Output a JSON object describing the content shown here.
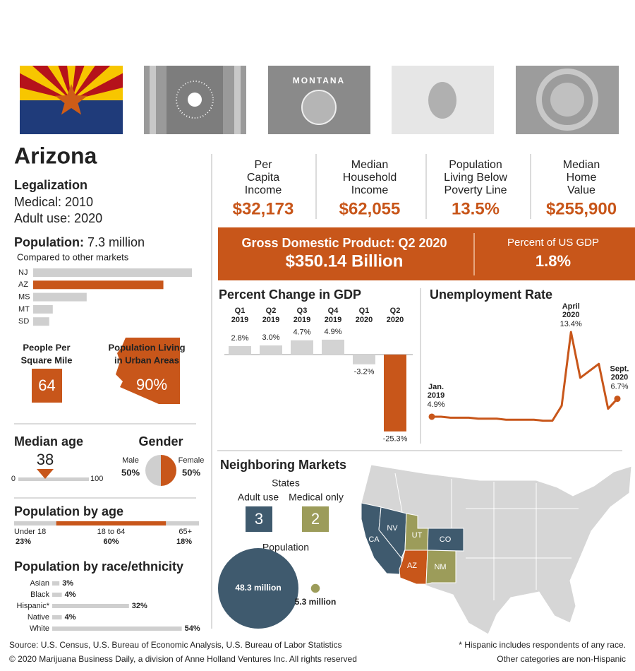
{
  "flags": {
    "montana": "MONTANA"
  },
  "state": "Arizona",
  "legalization": {
    "heading": "Legalization",
    "medical": "Medical: 2010",
    "adult_use": "Adult use: 2020"
  },
  "population": {
    "label": "Population:",
    "value": "7.3 million",
    "subtitle": "Compared to other markets"
  },
  "density": {
    "label": [
      "People Per",
      "Square Mile"
    ],
    "value": "64"
  },
  "urban": {
    "label": [
      "Population Living",
      "in Urban Areas"
    ],
    "value": "90%"
  },
  "stats": [
    {
      "label": [
        "Per",
        "Capita",
        "Income"
      ],
      "value": "$32,173"
    },
    {
      "label": [
        "Median",
        "Household",
        "Income"
      ],
      "value": "$62,055"
    },
    {
      "label": [
        "Population",
        "Living Below",
        "Poverty Line"
      ],
      "value": "13.5%"
    },
    {
      "label": [
        "Median",
        "Home",
        "Value"
      ],
      "value": "$255,900"
    }
  ],
  "gdp": {
    "label": "Gross Domestic Product: Q2 2020",
    "value": "$350.14 Billion",
    "share_label": "Percent of US GDP",
    "share_value": "1.8%"
  },
  "neighbors": {
    "title": "Neighboring Markets",
    "states_label": "States",
    "adult_label": "Adult use",
    "adult_count": 3,
    "medical_label": "Medical only",
    "medical_count": 2,
    "population_label": "Population",
    "bubbles": [
      {
        "label": "48.3 million",
        "value": 48.3,
        "group": "adult"
      },
      {
        "label": "5.3 million",
        "value": 5.3,
        "group": "medical"
      }
    ],
    "map": [
      {
        "abbr": "CA",
        "group": "adult"
      },
      {
        "abbr": "NV",
        "group": "adult"
      },
      {
        "abbr": "UT",
        "group": "medical"
      },
      {
        "abbr": "CO",
        "group": "adult"
      },
      {
        "abbr": "AZ",
        "group": "home"
      },
      {
        "abbr": "NM",
        "group": "medical"
      }
    ],
    "colors": {
      "adult": "#3f5a6e",
      "medical": "#9c9c5a",
      "home": "#c8561a"
    }
  },
  "footer": {
    "source": "Source:  U.S. Census, U.S. Bureau of Economic Analysis, U.S. Bureau of Labor Statistics",
    "copyright": "© 2020 Marijuana Business Daily, a division of Anne Holland Ventures Inc. All rights reserved",
    "note": [
      "* Hispanic includes respondents of any race.",
      "Other categories are non-Hispanic"
    ]
  },
  "chart_data": [
    {
      "type": "hbar",
      "categories": [
        "NJ",
        "AZ",
        "MS",
        "MT",
        "SD"
      ],
      "values": [
        8.9,
        7.3,
        3.0,
        1.1,
        0.9
      ],
      "colors": [
        "#cfcfcf",
        "#c8561a",
        "#cfcfcf",
        "#cfcfcf",
        "#cfcfcf"
      ],
      "xlim": [
        0,
        8.9
      ]
    },
    {
      "type": "gauge",
      "title": "Median age",
      "value": 38,
      "xlim": [
        0,
        100
      ],
      "xticks": [
        0,
        100
      ],
      "color": "#c8561a"
    },
    {
      "type": "pie",
      "title": "Gender",
      "categories": [
        "Male",
        "Female"
      ],
      "values": [
        50,
        50
      ],
      "value_labels": [
        "50%",
        "50%"
      ],
      "colors": [
        "#cfcfcf",
        "#c8561a"
      ]
    },
    {
      "type": "stacked",
      "title": "Population by age",
      "categories": [
        "Under 18",
        "18 to 64",
        "65+"
      ],
      "values": [
        23,
        60,
        18
      ],
      "value_labels": [
        "23%",
        "60%",
        "18%"
      ],
      "colors": [
        "#cfcfcf",
        "#c8561a",
        "#cfcfcf"
      ]
    },
    {
      "type": "hbar",
      "title": "Population by race/ethnicity",
      "categories": [
        "Asian",
        "Black",
        "Hispanic*",
        "Native",
        "White"
      ],
      "values": [
        3,
        4,
        32,
        4,
        54
      ],
      "value_labels": [
        "3%",
        "4%",
        "32%",
        "4%",
        "54%"
      ],
      "color": "#cfcfcf",
      "xlim": [
        0,
        55
      ]
    },
    {
      "type": "bar",
      "title": "Percent Change in GDP",
      "categories": [
        "Q1 2019",
        "Q2 2019",
        "Q3 2019",
        "Q4 2019",
        "Q1 2020",
        "Q2 2020"
      ],
      "values": [
        2.8,
        3.0,
        4.7,
        4.9,
        -3.2,
        -25.3
      ],
      "value_labels": [
        "2.8%",
        "3.0%",
        "4.7%",
        "4.9%",
        "-3.2%",
        "-25.3%"
      ],
      "colors": [
        "#d3d3d3",
        "#d3d3d3",
        "#d3d3d3",
        "#d3d3d3",
        "#d3d3d3",
        "#c8561a"
      ],
      "ylim": [
        -26,
        6.5
      ]
    },
    {
      "type": "line",
      "title": "Unemployment Rate",
      "categories": [
        "Jan. 2019",
        null,
        null,
        null,
        null,
        null,
        null,
        null,
        null,
        null,
        null,
        null,
        null,
        null,
        null,
        "April 2020",
        null,
        null,
        null,
        null,
        "Sept. 2020"
      ],
      "values": [
        4.9,
        4.9,
        4.8,
        4.8,
        4.8,
        4.7,
        4.7,
        4.7,
        4.6,
        4.6,
        4.6,
        4.6,
        4.5,
        4.5,
        6.0,
        13.4,
        8.8,
        9.5,
        10.2,
        5.7,
        6.7
      ],
      "value_labels": [
        "4.9%",
        null,
        null,
        null,
        null,
        null,
        null,
        null,
        null,
        null,
        null,
        null,
        null,
        null,
        null,
        "13.4%",
        null,
        null,
        null,
        null,
        "6.7%"
      ],
      "color": "#c8561a",
      "ylim": [
        3,
        14
      ]
    }
  ]
}
